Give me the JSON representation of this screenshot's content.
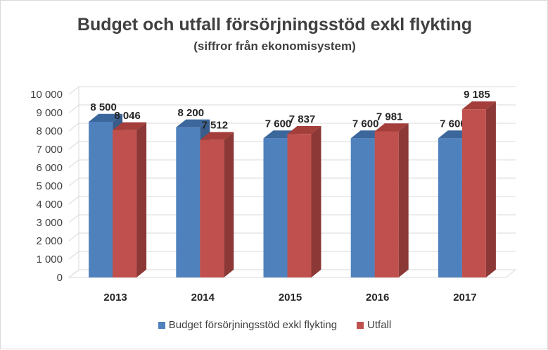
{
  "chart_data": {
    "type": "bar",
    "title": "Budget och utfall försörjningsstöd exkl flykting",
    "subtitle": "(siffror från ekonomisystem)",
    "categories": [
      "2013",
      "2014",
      "2015",
      "2016",
      "2017"
    ],
    "series": [
      {
        "name": "Budget försörjningsstöd exkl flykting",
        "values": [
          8500,
          8200,
          7600,
          7600,
          7600
        ],
        "labels": [
          "8 500",
          "8 200",
          "7 600",
          "7 600",
          "7 600"
        ],
        "color": "#4f81bd",
        "side_color": "#385d8a",
        "top_color": "#3c679c"
      },
      {
        "name": "Utfall",
        "values": [
          8046,
          7512,
          7837,
          7981,
          9185
        ],
        "labels": [
          "8 046",
          "7 512",
          "7 837",
          "7 981",
          "9 185"
        ],
        "color": "#c0504d",
        "side_color": "#8c3836",
        "top_color": "#a33e3b"
      }
    ],
    "yticks": [
      0,
      1000,
      2000,
      3000,
      4000,
      5000,
      6000,
      7000,
      8000,
      9000,
      10000
    ],
    "ytick_labels": [
      "0",
      "1 000",
      "2 000",
      "3 000",
      "4 000",
      "5 000",
      "6 000",
      "7 000",
      "8 000",
      "9 000",
      "10 000"
    ],
    "ylim": [
      0,
      10000
    ],
    "grid": true,
    "style": "3d",
    "legend_position": "bottom"
  }
}
